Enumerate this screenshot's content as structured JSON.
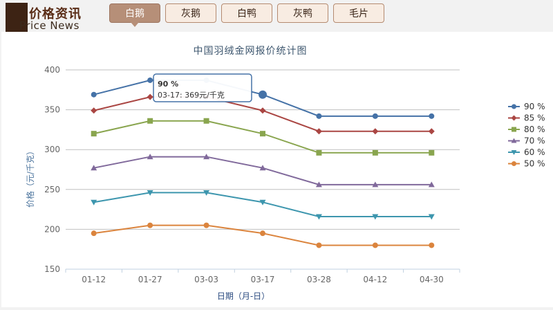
{
  "header": {
    "logo_cn": "价格资讯",
    "logo_en": "Price News",
    "tabs": [
      {
        "label": "白鹅",
        "active": true
      },
      {
        "label": "灰鹅",
        "active": false
      },
      {
        "label": "白鸭",
        "active": false
      },
      {
        "label": "灰鸭",
        "active": false
      },
      {
        "label": "毛片",
        "active": false
      }
    ]
  },
  "tooltip": {
    "title": "90 %",
    "body": "03-17: 369元/千克"
  },
  "chart_data": {
    "type": "line",
    "title": "中国羽绒金网报价统计图",
    "xlabel": "日期（月-日）",
    "ylabel": "价格（元/千克）",
    "categories": [
      "01-12",
      "01-27",
      "03-03",
      "03-17",
      "03-28",
      "04-12",
      "04-30"
    ],
    "ylim": [
      150,
      400
    ],
    "yticks": [
      150,
      200,
      250,
      300,
      350,
      400
    ],
    "grid": true,
    "legend_position": "right",
    "series": [
      {
        "name": "90 %",
        "color": "#4572a7",
        "marker": "circle",
        "values": [
          369,
          387,
          387,
          369,
          342,
          342,
          342
        ]
      },
      {
        "name": "85 %",
        "color": "#aa4643",
        "marker": "diamond",
        "values": [
          349,
          366,
          366,
          349,
          323,
          323,
          323
        ]
      },
      {
        "name": "80 %",
        "color": "#89a54e",
        "marker": "square",
        "values": [
          320,
          336,
          336,
          320,
          296,
          296,
          296
        ]
      },
      {
        "name": "70 %",
        "color": "#80699b",
        "marker": "triangle",
        "values": [
          277,
          291,
          291,
          277,
          256,
          256,
          256
        ]
      },
      {
        "name": "60 %",
        "color": "#3d96ae",
        "marker": "triangle-down",
        "values": [
          234,
          246,
          246,
          234,
          216,
          216,
          216
        ]
      },
      {
        "name": "50 %",
        "color": "#db843d",
        "marker": "circle",
        "values": [
          195,
          205,
          205,
          195,
          180,
          180,
          180
        ]
      }
    ]
  }
}
